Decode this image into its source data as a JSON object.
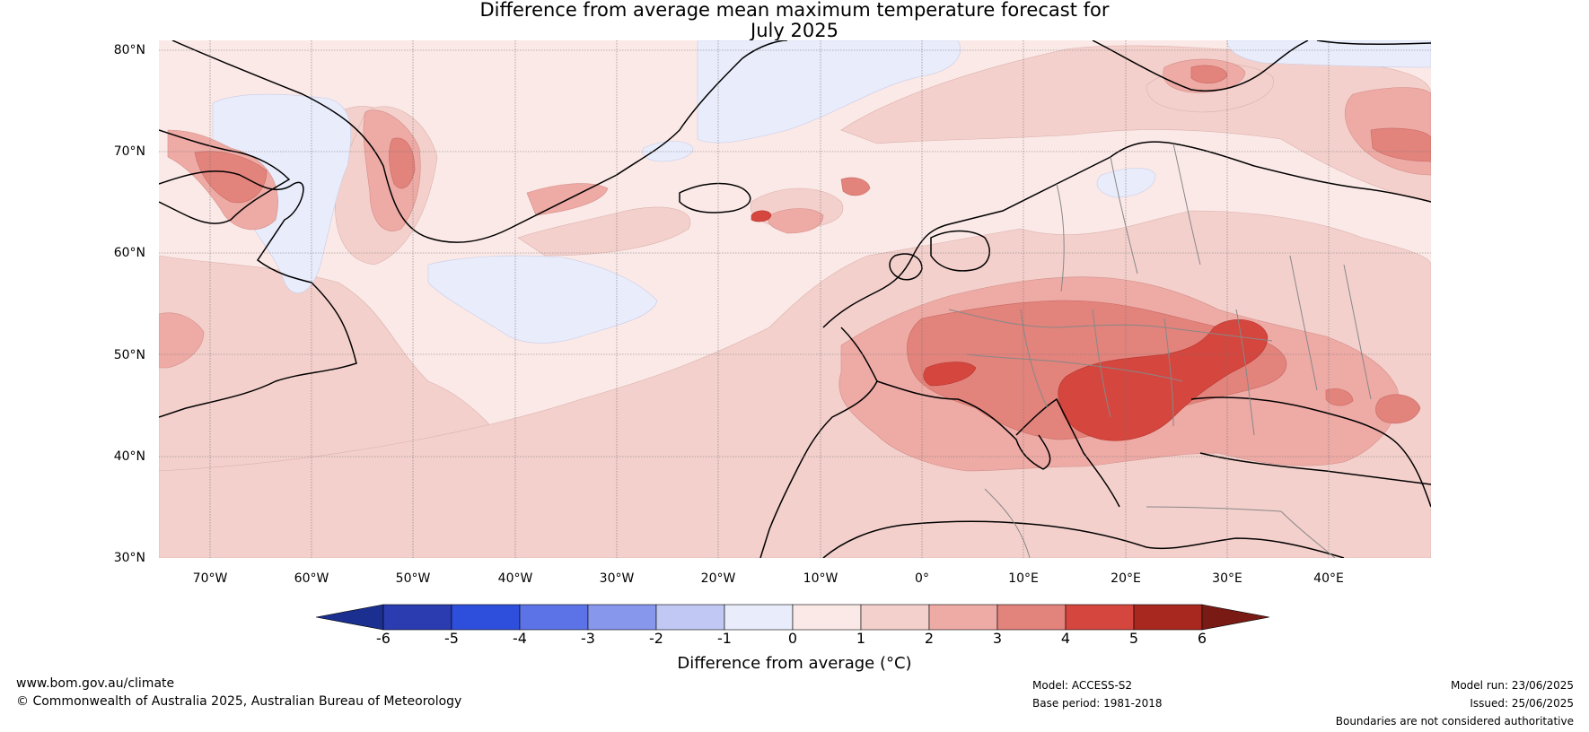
{
  "title_line1": "Difference from average mean maximum temperature forecast for",
  "title_line2": "July 2025",
  "lat_labels": [
    "80°N",
    "70°N",
    "60°N",
    "50°N",
    "40°N",
    "30°N"
  ],
  "lon_labels": [
    "70°W",
    "60°W",
    "50°W",
    "40°W",
    "30°W",
    "20°W",
    "10°W",
    "0°",
    "10°E",
    "20°E",
    "30°E",
    "40°E"
  ],
  "map_extent": {
    "lon_min": -75,
    "lon_max": 50,
    "lat_min": 30,
    "lat_max": 81
  },
  "colorbar": {
    "ticks": [
      "-6",
      "-5",
      "-4",
      "-3",
      "-2",
      "-1",
      "0",
      "1",
      "2",
      "3",
      "4",
      "5",
      "6"
    ],
    "colors": [
      "#1a2f8f",
      "#2a3cb0",
      "#2e4fdc",
      "#5b73e6",
      "#8797ec",
      "#c0c8f3",
      "#e9ecfb",
      "#fbe9e7",
      "#f4d0cc",
      "#eeaaa5",
      "#e2837c",
      "#d4463e",
      "#a8271f",
      "#7a1a14"
    ],
    "label": "Difference from average (°C)"
  },
  "palette": {
    "land_outline": "#000000",
    "border": "#888888",
    "grid": "#777777",
    "below_0": "#e9ecfb",
    "range_0_1": "#fbe9e7",
    "range_1_2": "#f4d0cc",
    "range_2_3": "#eeaaa5",
    "range_3_4": "#e2837c",
    "range_4_5": "#d4463e"
  },
  "footer": {
    "website": "www.bom.gov.au/climate",
    "copyright": "© Commonwealth of Australia 2025, Australian Bureau of Meteorology",
    "model": "Model: ACCESS-S2",
    "base_period": "Base period: 1981-2018",
    "model_run": "Model run: 23/06/2025",
    "issued": "Issued: 25/06/2025",
    "disclaimer": "Boundaries are not considered authoritative"
  }
}
